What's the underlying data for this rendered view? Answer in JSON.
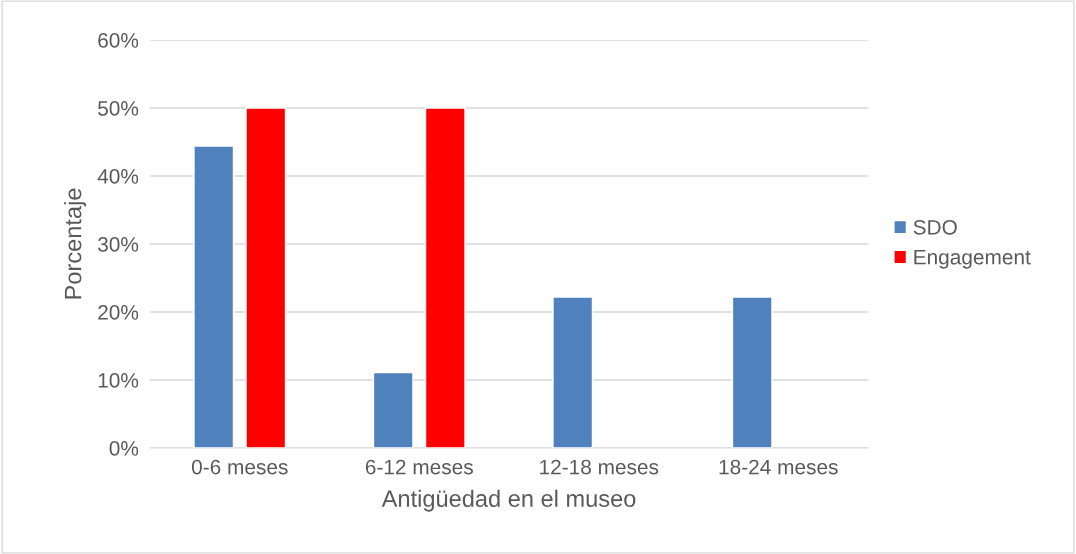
{
  "chart_data": {
    "type": "bar",
    "xlabel": "Antigüedad en el museo",
    "ylabel": "Porcentaje",
    "categories": [
      "0-6 meses",
      "6-12 meses",
      "12-18 meses",
      "18-24 meses"
    ],
    "series": [
      {
        "name": "SDO",
        "color": "#4f81bd",
        "values": [
          44.4,
          11.1,
          22.2,
          22.2
        ]
      },
      {
        "name": "Engagement",
        "color": "#ff0000",
        "values": [
          50,
          50,
          null,
          null
        ]
      }
    ],
    "ylim": [
      0,
      60
    ],
    "yticks": [
      {
        "value": 0,
        "label": "0%"
      },
      {
        "value": 10,
        "label": "10%"
      },
      {
        "value": 20,
        "label": "20%"
      },
      {
        "value": 30,
        "label": "30%"
      },
      {
        "value": 40,
        "label": "40%"
      },
      {
        "value": 50,
        "label": "50%"
      },
      {
        "value": 60,
        "label": "60%"
      }
    ],
    "grid": "y",
    "legend": "right"
  }
}
